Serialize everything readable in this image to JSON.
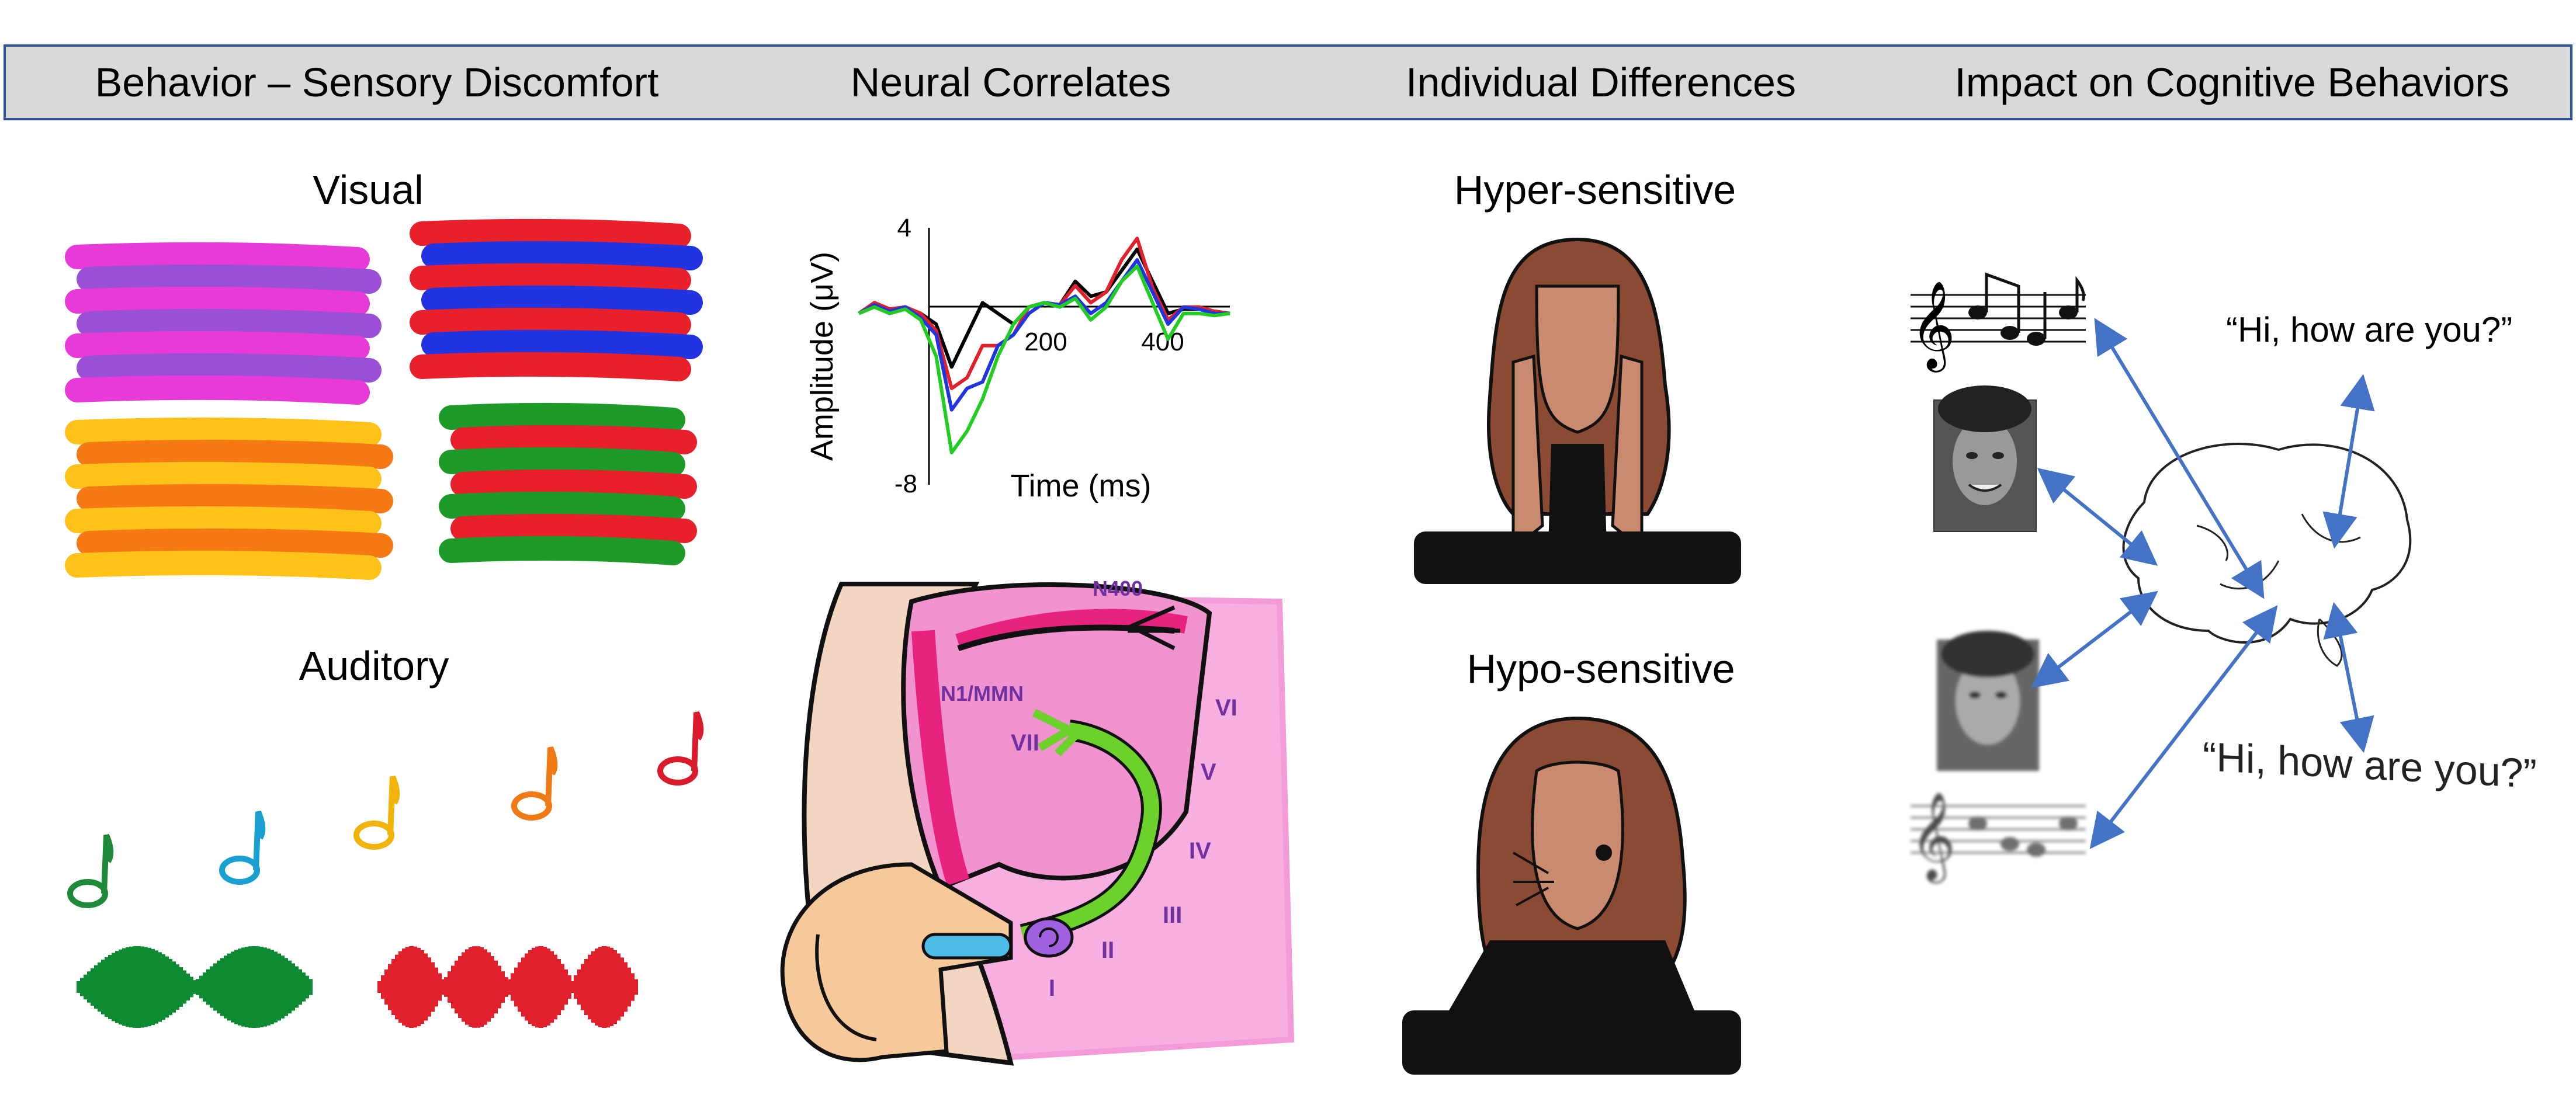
{
  "header": {
    "col1": "Behavior – Sensory Discomfort",
    "col2": "Neural Correlates",
    "col3": "Individual Differences",
    "col4": "Impact on Cognitive Behaviors"
  },
  "behavior": {
    "visual_label": "Visual",
    "auditory_label": "Auditory",
    "stripe_colors": {
      "magenta": "#e83ad6",
      "purple": "#9a4fd6",
      "red": "#e8202b",
      "blue": "#2233e0",
      "yellow": "#ffc21a",
      "orange": "#f57a14",
      "green": "#1e9a2a"
    },
    "note_colors": [
      "#1e8a3a",
      "#1aa0d0",
      "#f2b40a",
      "#f07a16",
      "#d81a2a"
    ],
    "waveform_colors": [
      "#0e8a32",
      "#e0202a"
    ]
  },
  "neural": {
    "chart_data": {
      "type": "line",
      "xlabel": "Time (ms)",
      "ylabel": "Amplitude (μV)",
      "x_ticks": [
        "200",
        "400"
      ],
      "y_ticks": [
        "4",
        "-8"
      ],
      "xlim": [
        -100,
        500
      ],
      "ylim": [
        -8,
        4
      ],
      "x": [
        -100,
        -75,
        -50,
        -25,
        0,
        25,
        50,
        75,
        100,
        125,
        150,
        175,
        200,
        225,
        250,
        275,
        300,
        325,
        350,
        375,
        400,
        425,
        450,
        475,
        500
      ],
      "series": [
        {
          "color": "#000000",
          "values": [
            0,
            0.5,
            0.2,
            0.3,
            0,
            -0.5,
            -2.5,
            -1,
            0.5,
            0,
            -0.5,
            0.3,
            0.5,
            0.4,
            1.5,
            0.8,
            1,
            2,
            3,
            1.5,
            0,
            0.2,
            0.2,
            0.1,
            0
          ]
        },
        {
          "color": "#e0202a",
          "values": [
            0,
            0.5,
            0.2,
            0.3,
            0,
            -0.8,
            -3.5,
            -3,
            -1.5,
            -1.5,
            -1,
            0.3,
            0.5,
            0.4,
            1.3,
            0.5,
            1,
            2.5,
            3.5,
            1.2,
            -0.3,
            0.3,
            0.3,
            0.1,
            0
          ]
        },
        {
          "color": "#2233e0",
          "values": [
            0,
            0.4,
            0.1,
            0.3,
            -0.2,
            -1,
            -4.5,
            -3.5,
            -3.2,
            -1.5,
            -1,
            0,
            0.5,
            0.4,
            0.8,
            0,
            0.5,
            1.5,
            2.5,
            1,
            -0.5,
            0.3,
            0.2,
            0,
            0
          ]
        },
        {
          "color": "#22cc22",
          "values": [
            0,
            0.3,
            0,
            0.2,
            -0.3,
            -2,
            -6.5,
            -5.5,
            -4,
            -2,
            -0.5,
            0.3,
            0.5,
            0.3,
            0.7,
            -0.3,
            0.3,
            1.5,
            2.2,
            0.5,
            -1.2,
            0,
            0,
            -0.1,
            0
          ]
        }
      ]
    },
    "ear_labels": [
      "N400",
      "N1/MMN",
      "VI",
      "VII",
      "V",
      "IV",
      "III",
      "II",
      "I"
    ]
  },
  "individual": {
    "hyper_label": "Hyper-sensitive",
    "hypo_label": "Hypo-sensitive"
  },
  "cognitive": {
    "quote_clear": "“Hi, how are you?”",
    "quote_distorted": "“Hi, how are you?”",
    "arrow_color": "#4472c4"
  }
}
